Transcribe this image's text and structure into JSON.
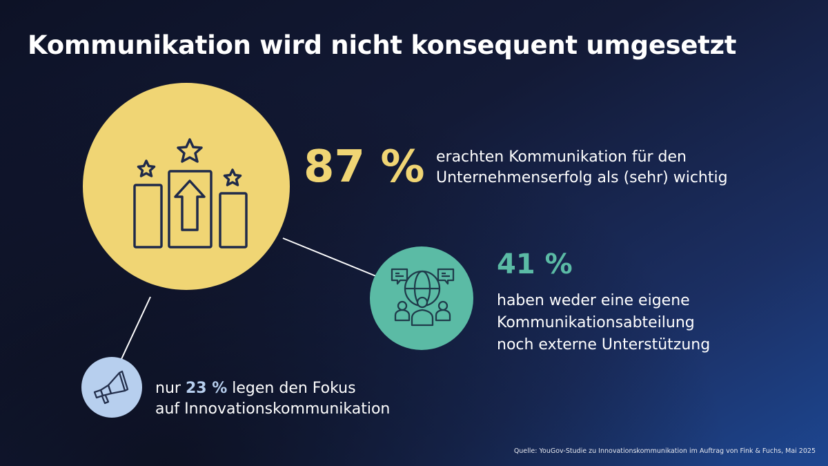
{
  "title": "Kommunikation wird nicht konsequent umgesetzt",
  "stats": [
    {
      "value": "87 %",
      "text_line1": "erachten Kommunikation für den",
      "text_line2": "Unternehmenserfolg als (sehr) wichtig",
      "color": "#f0d574",
      "icon": "podium-stars-arrow-icon"
    },
    {
      "value": "41 %",
      "text_line1": "haben weder eine eigene",
      "text_line2": "Kommunikationsabteilung",
      "text_line3": "noch externe Unterstützung",
      "color": "#5bbba5",
      "icon": "globe-people-chat-icon"
    },
    {
      "prefix": "nur",
      "value": "23 %",
      "suffix": "legen den Fokus",
      "text_line2": "auf Innovationskommunikation",
      "color": "#b7cfee",
      "icon": "megaphone-icon"
    }
  ],
  "source": "Quelle: YouGov-Studie zu Innovationskommunikation im Auftrag von Fink & Fuchs, Mai 2025"
}
